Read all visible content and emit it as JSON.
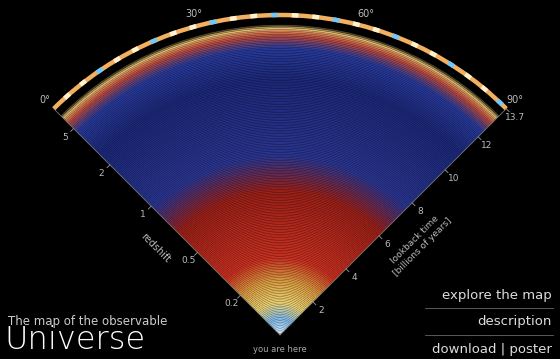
{
  "chart_data": {
    "type": "fan",
    "title": "Universe",
    "subtitle": "The map of the observable",
    "angle_lim": [
      0,
      90
    ],
    "angle_ticks": [
      {
        "value": 0,
        "label": "0°"
      },
      {
        "value": 30,
        "label": "30°"
      },
      {
        "value": 60,
        "label": "60°"
      },
      {
        "value": 90,
        "label": "90°"
      }
    ],
    "rlim": [
      0,
      13.7
    ],
    "r_label": "lookback time\n[billions of years]",
    "rticks": [
      2,
      4,
      6,
      8,
      10,
      12,
      13.7
    ],
    "redshift_label": "redshift",
    "redshift_ticks": [
      {
        "value": 2.4,
        "label": "0.2"
      },
      {
        "value": 5.0,
        "label": "0.5"
      },
      {
        "value": 7.8,
        "label": "1"
      },
      {
        "value": 10.3,
        "label": "2"
      },
      {
        "value": 12.5,
        "label": "5"
      }
    ],
    "annotations": [
      "you are here"
    ],
    "menu": [
      "explore the map",
      "description",
      "download | poster"
    ]
  }
}
